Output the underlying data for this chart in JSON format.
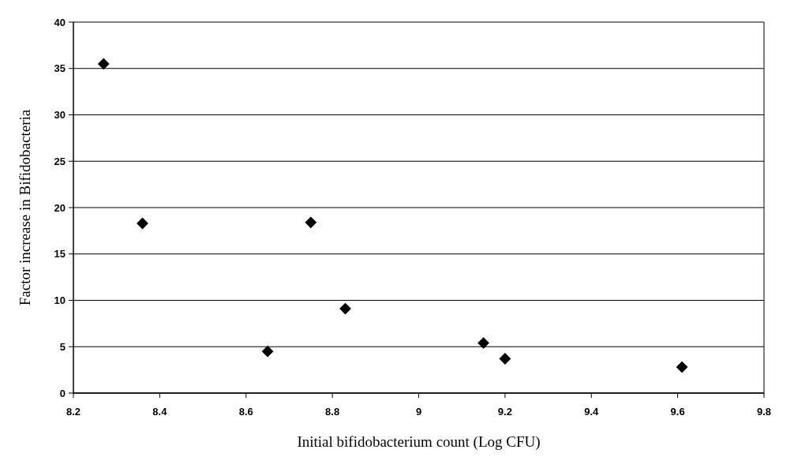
{
  "chart_data": {
    "type": "scatter",
    "xlabel": "Initial bifidobacterium count (Log CFU)",
    "ylabel": "Factor increase in Bifidobacteria",
    "x": [
      8.27,
      8.36,
      8.65,
      8.75,
      8.83,
      9.15,
      9.2,
      9.61
    ],
    "series": [
      {
        "color": "#000000",
        "values": [
          35.5,
          18.3,
          4.5,
          18.4,
          9.1,
          5.4,
          3.7,
          2.8
        ]
      }
    ],
    "xlim": [
      8.2,
      9.8
    ],
    "xticks": [
      8.2,
      8.4,
      8.6,
      8.8,
      9,
      9.2,
      9.4,
      9.6,
      9.8
    ],
    "ylim": [
      0,
      40
    ],
    "yticks": [
      0,
      5,
      10,
      15,
      20,
      25,
      30,
      35,
      40
    ],
    "grid": "y",
    "marker": "diamond"
  }
}
